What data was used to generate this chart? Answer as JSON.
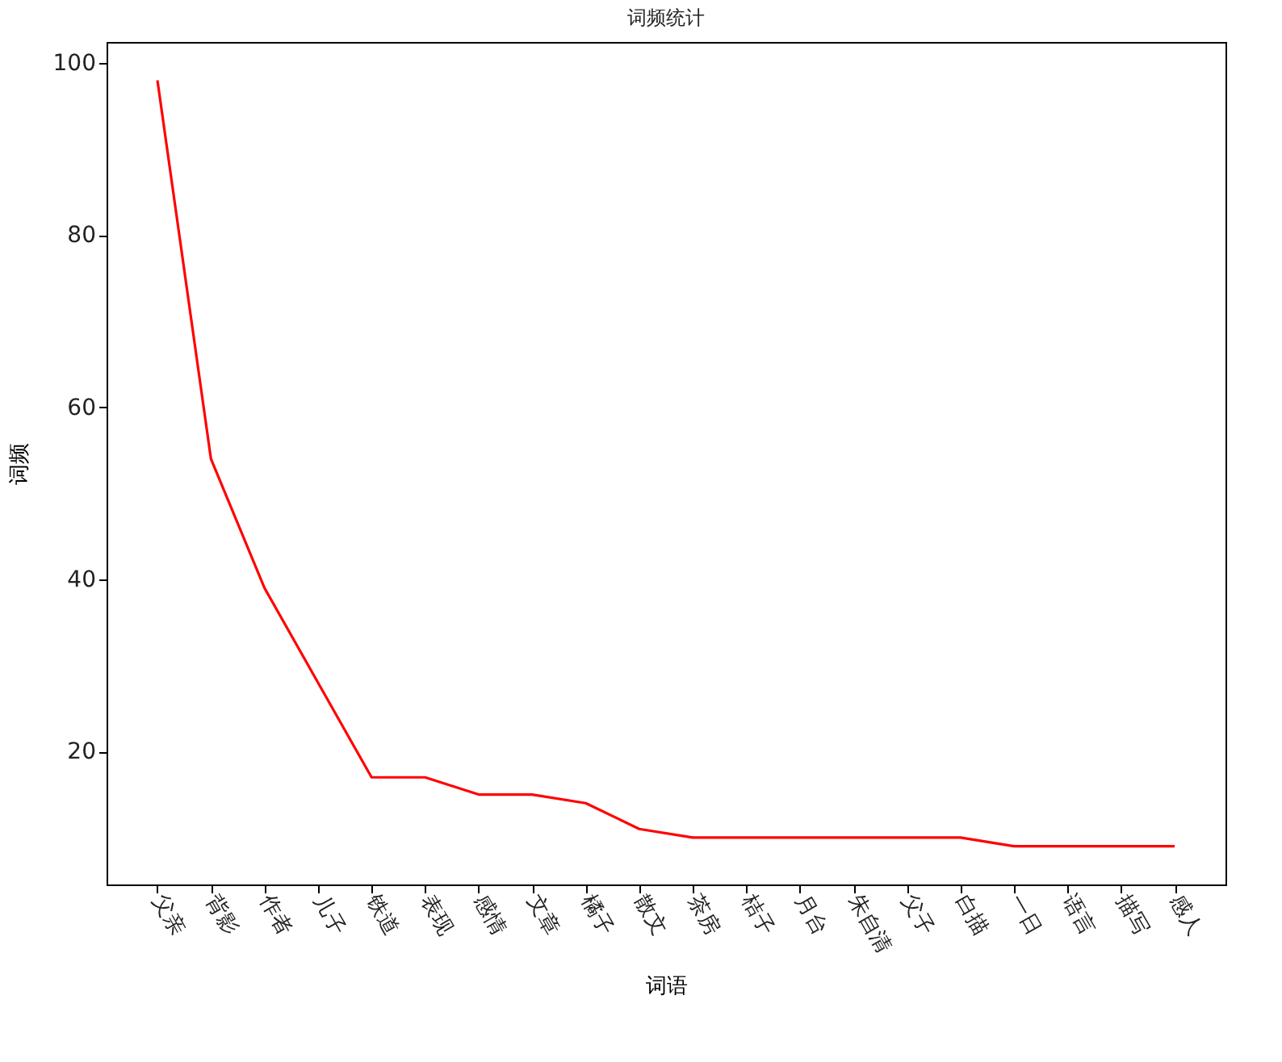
{
  "chart_data": {
    "type": "line",
    "title": "词频统计",
    "xlabel": "词语",
    "ylabel": "词频",
    "categories": [
      "父亲",
      "背影",
      "作者",
      "儿子",
      "铁道",
      "表现",
      "感情",
      "文章",
      "橘子",
      "散文",
      "茶房",
      "桔子",
      "月台",
      "朱自清",
      "父子",
      "白描",
      "一日",
      "语言",
      "描写",
      "感人"
    ],
    "series": [
      {
        "color": "#ff0000",
        "values": [
          98,
          54,
          39,
          28,
          17,
          17,
          15,
          15,
          14,
          11,
          10,
          10,
          10,
          10,
          10,
          10,
          9,
          9,
          9,
          9
        ]
      }
    ],
    "ylim": [
      4.55,
      102.45
    ],
    "yticks": [
      20,
      40,
      60,
      80,
      100
    ],
    "grid": false,
    "legend": false,
    "marker": "none",
    "line_style": "solid"
  }
}
